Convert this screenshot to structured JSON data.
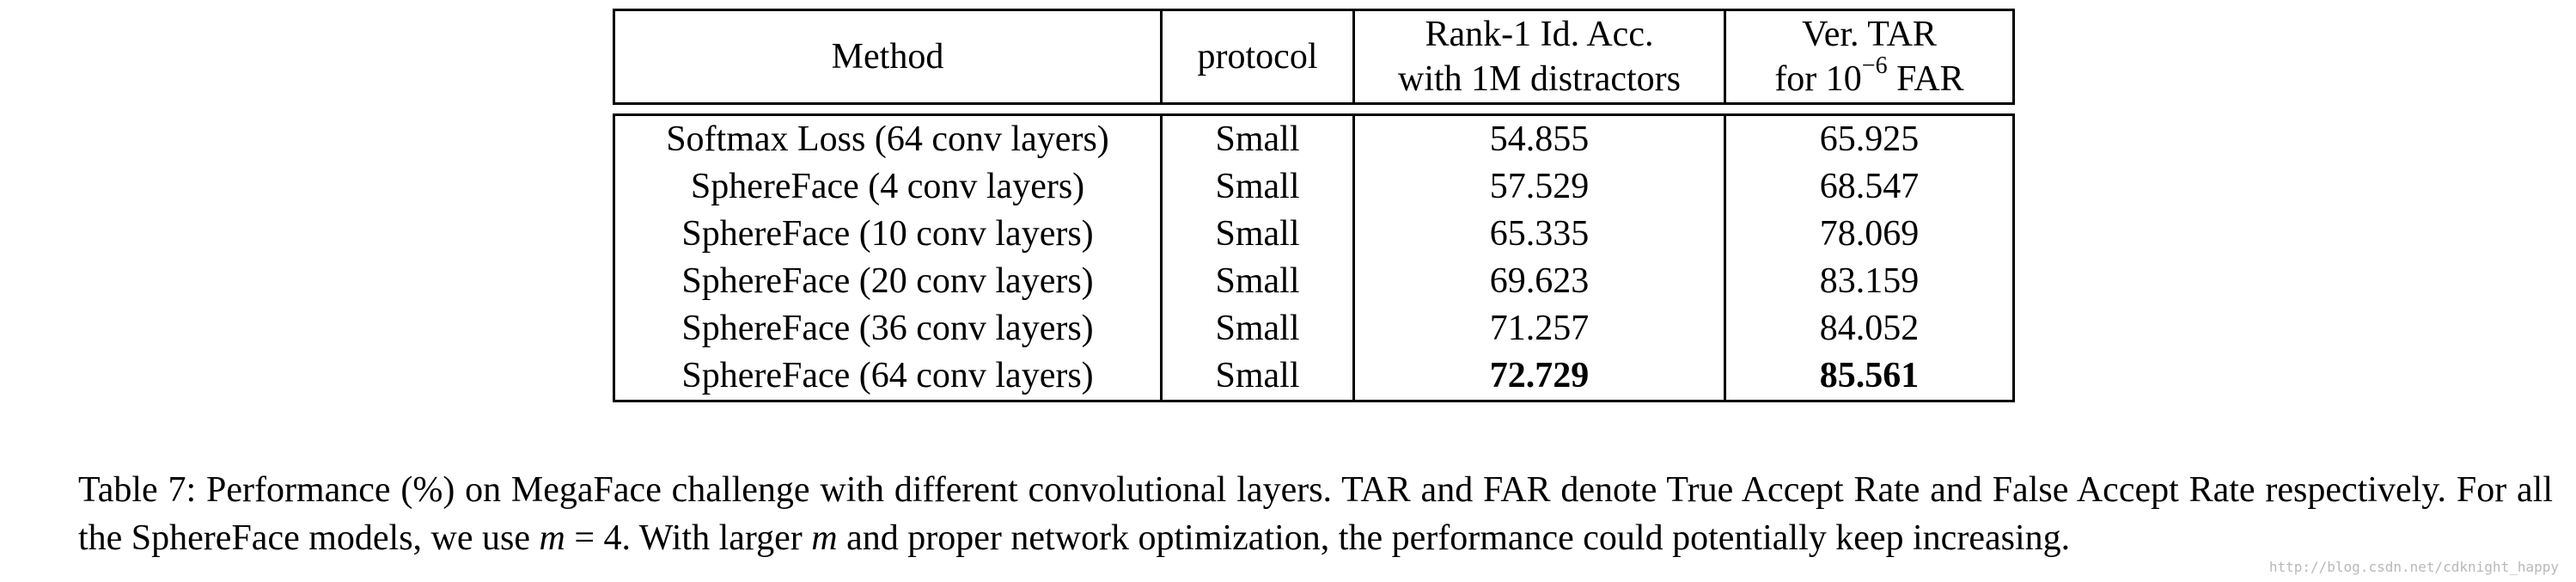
{
  "table": {
    "headers": {
      "method": "Method",
      "protocol": "protocol",
      "rank1_line1": "Rank-1 Id. Acc.",
      "rank1_line2": "with 1M distractors",
      "tar_line1": "Ver. TAR",
      "tar_line2_prefix": "for 10",
      "tar_line2_exp": "−6",
      "tar_line2_suffix": " FAR"
    },
    "rows": [
      {
        "method": "Softmax Loss (64 conv layers)",
        "protocol": "Small",
        "rank1": "54.855",
        "tar": "65.925"
      },
      {
        "method": "SphereFace (4 conv layers)",
        "protocol": "Small",
        "rank1": "57.529",
        "tar": "68.547"
      },
      {
        "method": "SphereFace (10 conv layers)",
        "protocol": "Small",
        "rank1": "65.335",
        "tar": "78.069"
      },
      {
        "method": "SphereFace (20 conv layers)",
        "protocol": "Small",
        "rank1": "69.623",
        "tar": "83.159"
      },
      {
        "method": "SphereFace (36 conv layers)",
        "protocol": "Small",
        "rank1": "71.257",
        "tar": "84.052"
      },
      {
        "method": "SphereFace (64 conv layers)",
        "protocol": "Small",
        "rank1": "72.729",
        "tar": "85.561"
      }
    ],
    "bold_row_index": 5
  },
  "caption": {
    "part1": "Table 7: Performance (%) on MegaFace challenge with different convolutional layers. TAR and FAR denote True Accept Rate and False Accept Rate respectively. For all the SphereFace models, we use ",
    "math1": "m",
    "part2": " = 4. With larger ",
    "math2": "m",
    "part3": " and proper network optimization, the performance could potentially keep increasing."
  },
  "watermark": "http://blog.csdn.net/cdknight_happy"
}
